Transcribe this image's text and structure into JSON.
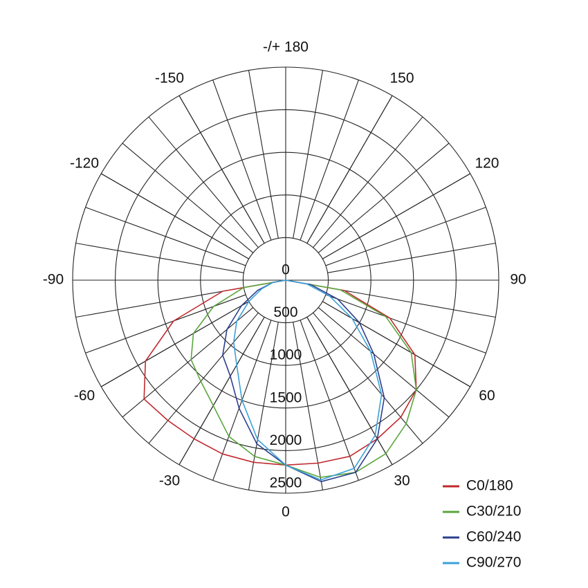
{
  "chart_data": {
    "type": "polar",
    "zero_direction": "bottom",
    "thetaticks": [
      0,
      30,
      60,
      90,
      120,
      150,
      {
        "value": 180,
        "label": "-/+ 180"
      },
      -150,
      -120,
      -90,
      -60,
      -30
    ],
    "rlim": [
      0,
      2500
    ],
    "rticks": [
      0,
      500,
      1000,
      1500,
      2000,
      2500
    ],
    "legend": "bottom-right",
    "x": [
      -90,
      -80,
      -70,
      -60,
      -50,
      -40,
      -30,
      -20,
      -10,
      0,
      10,
      20,
      30,
      40,
      50,
      60,
      70,
      80,
      90
    ],
    "series": [
      {
        "name": "C0/180",
        "color": "#c0282d",
        "values": [
          0,
          750,
          1400,
          1900,
          2170,
          2150,
          2150,
          2170,
          2170,
          2170,
          2180,
          2200,
          2150,
          2100,
          2000,
          1750,
          1300,
          700,
          0
        ]
      },
      {
        "name": "C30/210",
        "color": "#5aa63c",
        "values": [
          0,
          500,
          900,
          1250,
          1450,
          1550,
          1700,
          1950,
          2100,
          2170,
          2350,
          2400,
          2350,
          2200,
          2000,
          1700,
          1250,
          650,
          0
        ]
      },
      {
        "name": "C60/240",
        "color": "#2b3f8c",
        "values": [
          0,
          150,
          350,
          600,
          900,
          1150,
          1300,
          1600,
          1950,
          2170,
          2400,
          2400,
          2150,
          1800,
          1350,
          1000,
          650,
          300,
          0
        ]
      },
      {
        "name": "C90/270",
        "color": "#3aa0d8",
        "values": [
          0,
          150,
          300,
          500,
          750,
          950,
          1150,
          1500,
          1900,
          2170,
          2380,
          2350,
          2100,
          1750,
          1300,
          900,
          550,
          250,
          0
        ]
      }
    ]
  }
}
